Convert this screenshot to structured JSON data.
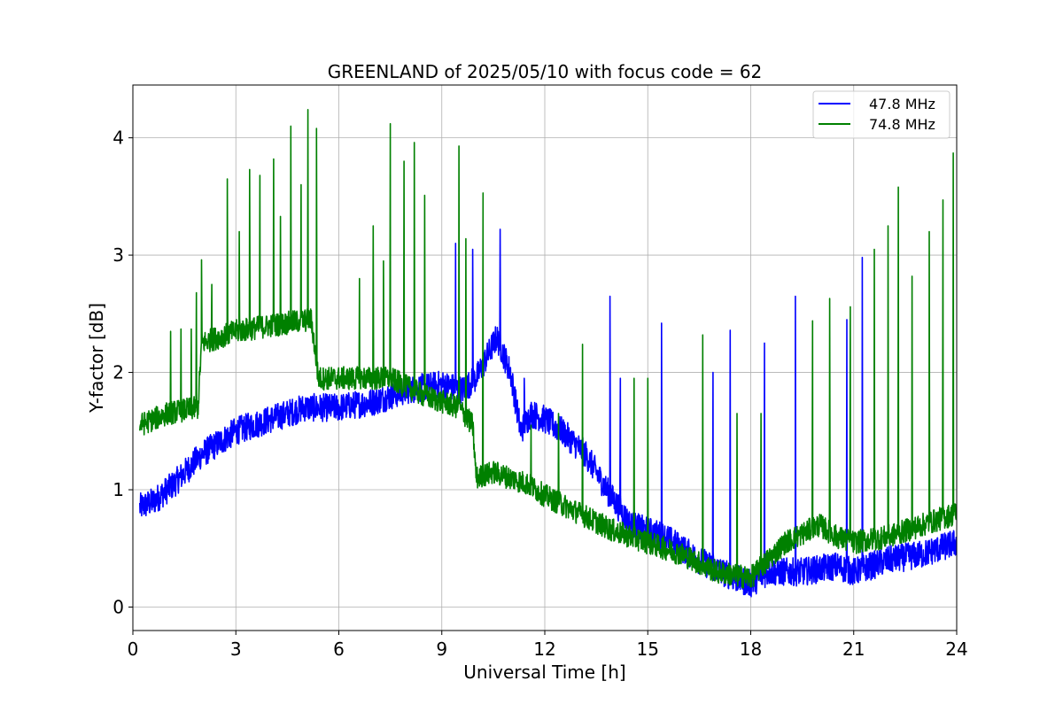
{
  "chart_data": {
    "type": "line",
    "title": "GREENLAND of 2025/05/10 with focus code = 62",
    "xlabel": "Universal Time [h]",
    "ylabel": "Y-factor [dB]",
    "xlim": [
      0,
      24
    ],
    "ylim": [
      -0.2,
      4.45
    ],
    "xticks": [
      0,
      3,
      6,
      9,
      12,
      15,
      18,
      21,
      24
    ],
    "yticks": [
      0,
      1,
      2,
      3,
      4
    ],
    "grid": true,
    "legend_position": "top-right",
    "series": [
      {
        "name": "47.8 MHz",
        "color": "#0000ff",
        "noise": 0.12,
        "baseline": [
          [
            0.2,
            0.85
          ],
          [
            0.6,
            0.9
          ],
          [
            1.2,
            1.05
          ],
          [
            2.0,
            1.3
          ],
          [
            3.0,
            1.5
          ],
          [
            4.0,
            1.6
          ],
          [
            5.0,
            1.7
          ],
          [
            6.0,
            1.7
          ],
          [
            7.0,
            1.75
          ],
          [
            8.0,
            1.85
          ],
          [
            9.0,
            1.9
          ],
          [
            9.6,
            1.85
          ],
          [
            10.0,
            1.95
          ],
          [
            10.6,
            2.3
          ],
          [
            11.0,
            2.0
          ],
          [
            11.3,
            1.5
          ],
          [
            11.6,
            1.65
          ],
          [
            12.0,
            1.6
          ],
          [
            12.5,
            1.5
          ],
          [
            13.2,
            1.3
          ],
          [
            13.8,
            1.0
          ],
          [
            14.5,
            0.7
          ],
          [
            15.5,
            0.6
          ],
          [
            16.5,
            0.4
          ],
          [
            17.5,
            0.25
          ],
          [
            18.0,
            0.2
          ],
          [
            18.5,
            0.3
          ],
          [
            19.5,
            0.3
          ],
          [
            20.5,
            0.35
          ],
          [
            21.0,
            0.3
          ],
          [
            22.0,
            0.4
          ],
          [
            23.0,
            0.45
          ],
          [
            24.0,
            0.55
          ]
        ],
        "spikes": [
          [
            9.4,
            3.1
          ],
          [
            9.9,
            3.05
          ],
          [
            10.7,
            3.22
          ],
          [
            11.4,
            1.95
          ],
          [
            13.9,
            2.65
          ],
          [
            14.2,
            1.95
          ],
          [
            15.4,
            2.42
          ],
          [
            16.9,
            2.0
          ],
          [
            17.4,
            2.36
          ],
          [
            18.4,
            2.25
          ],
          [
            19.3,
            2.65
          ],
          [
            20.8,
            2.45
          ],
          [
            21.25,
            2.98
          ]
        ]
      },
      {
        "name": "74.8 MHz",
        "color": "#008000",
        "noise": 0.1,
        "baseline": [
          [
            0.2,
            1.55
          ],
          [
            1.0,
            1.65
          ],
          [
            1.9,
            1.7
          ],
          [
            2.0,
            2.25
          ],
          [
            3.0,
            2.35
          ],
          [
            4.0,
            2.4
          ],
          [
            5.2,
            2.45
          ],
          [
            5.4,
            1.95
          ],
          [
            6.5,
            1.95
          ],
          [
            7.5,
            1.95
          ],
          [
            8.5,
            1.8
          ],
          [
            9.5,
            1.7
          ],
          [
            9.9,
            1.55
          ],
          [
            10.0,
            1.1
          ],
          [
            10.5,
            1.15
          ],
          [
            11.0,
            1.1
          ],
          [
            11.5,
            1.05
          ],
          [
            12.0,
            0.95
          ],
          [
            13.0,
            0.8
          ],
          [
            14.0,
            0.65
          ],
          [
            15.0,
            0.55
          ],
          [
            16.0,
            0.45
          ],
          [
            17.0,
            0.3
          ],
          [
            18.0,
            0.25
          ],
          [
            18.5,
            0.4
          ],
          [
            19.0,
            0.55
          ],
          [
            20.0,
            0.7
          ],
          [
            20.5,
            0.6
          ],
          [
            21.0,
            0.55
          ],
          [
            22.0,
            0.6
          ],
          [
            23.0,
            0.7
          ],
          [
            24.0,
            0.8
          ]
        ],
        "spikes": [
          [
            1.1,
            2.35
          ],
          [
            1.4,
            2.37
          ],
          [
            1.7,
            2.37
          ],
          [
            1.85,
            2.68
          ],
          [
            2.0,
            2.96
          ],
          [
            2.3,
            2.75
          ],
          [
            2.75,
            3.65
          ],
          [
            3.1,
            3.2
          ],
          [
            3.4,
            3.73
          ],
          [
            3.7,
            3.68
          ],
          [
            4.1,
            3.82
          ],
          [
            4.3,
            3.33
          ],
          [
            4.6,
            4.1
          ],
          [
            4.9,
            3.6
          ],
          [
            5.1,
            4.24
          ],
          [
            5.35,
            4.08
          ],
          [
            6.6,
            2.8
          ],
          [
            7.0,
            3.25
          ],
          [
            7.3,
            2.95
          ],
          [
            7.5,
            4.12
          ],
          [
            7.9,
            3.8
          ],
          [
            8.2,
            3.96
          ],
          [
            8.5,
            3.51
          ],
          [
            9.5,
            3.93
          ],
          [
            9.7,
            3.14
          ],
          [
            10.2,
            3.53
          ],
          [
            11.6,
            1.55
          ],
          [
            12.4,
            1.65
          ],
          [
            13.1,
            2.24
          ],
          [
            14.6,
            1.95
          ],
          [
            15.0,
            1.95
          ],
          [
            16.6,
            2.32
          ],
          [
            17.6,
            1.65
          ],
          [
            18.3,
            1.65
          ],
          [
            19.8,
            2.44
          ],
          [
            20.3,
            2.63
          ],
          [
            20.9,
            2.56
          ],
          [
            21.6,
            3.05
          ],
          [
            22.0,
            3.25
          ],
          [
            22.3,
            3.58
          ],
          [
            22.7,
            2.82
          ],
          [
            23.2,
            3.2
          ],
          [
            23.6,
            3.47
          ],
          [
            23.9,
            3.87
          ]
        ]
      }
    ]
  }
}
